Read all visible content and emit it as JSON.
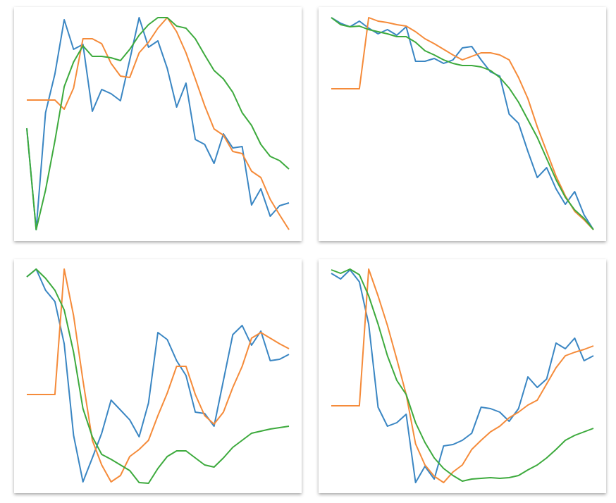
{
  "chart_data": [
    {
      "type": "line",
      "xlim": [
        0,
        28
      ],
      "ylim": [
        0,
        332
      ],
      "series": [
        {
          "color": "#3a86c3",
          "values": [
            160,
            16,
            182,
            237,
            314,
            272,
            279,
            184,
            215,
            209,
            199,
            257,
            317,
            275,
            284,
            245,
            190,
            224,
            144,
            137,
            110,
            152,
            132,
            134,
            51,
            74,
            35,
            50,
            54
          ]
        },
        {
          "color": "#f58b3a",
          "values": [
            200,
            200,
            200,
            200,
            187,
            217,
            287,
            287,
            280,
            252,
            234,
            232,
            267,
            282,
            302,
            317,
            297,
            267,
            230,
            192,
            159,
            150,
            127,
            124,
            99,
            90,
            59,
            37,
            16
          ]
        },
        {
          "color": "#3daa3d",
          "values": [
            160,
            16,
            72,
            142,
            219,
            254,
            277,
            262,
            262,
            260,
            256,
            272,
            292,
            307,
            317,
            317,
            305,
            302,
            287,
            264,
            242,
            230,
            211,
            182,
            164,
            137,
            120,
            114,
            102
          ]
        }
      ]
    },
    {
      "type": "line",
      "xlim": [
        0,
        28
      ],
      "ylim": [
        0,
        332
      ],
      "series": [
        {
          "color": "#3a86c3",
          "values": [
            317,
            309,
            304,
            312,
            302,
            294,
            300,
            292,
            304,
            255,
            255,
            259,
            252,
            257,
            274,
            276,
            257,
            240,
            234,
            180,
            167,
            127,
            90,
            104,
            74,
            52,
            70,
            37,
            16
          ]
        },
        {
          "color": "#f58b3a",
          "values": [
            216,
            216,
            216,
            216,
            317,
            312,
            310,
            307,
            305,
            297,
            287,
            280,
            272,
            264,
            257,
            262,
            267,
            267,
            264,
            257,
            232,
            202,
            162,
            127,
            92,
            64,
            42,
            30,
            16
          ]
        },
        {
          "color": "#3daa3d",
          "values": [
            317,
            307,
            304,
            305,
            300,
            297,
            294,
            290,
            290,
            282,
            270,
            264,
            257,
            252,
            249,
            249,
            247,
            242,
            232,
            217,
            197,
            172,
            147,
            117,
            87,
            62,
            44,
            32,
            16
          ]
        }
      ]
    },
    {
      "type": "line",
      "xlim": [
        0,
        28
      ],
      "ylim": [
        0,
        332
      ],
      "series": [
        {
          "color": "#3a86c3",
          "values": [
            307,
            318,
            288,
            272,
            212,
            82,
            16,
            50,
            85,
            132,
            118,
            104,
            80,
            128,
            228,
            218,
            188,
            167,
            115,
            113,
            95,
            160,
            225,
            238,
            210,
            230,
            188,
            190,
            197
          ]
        },
        {
          "color": "#f58b3a",
          "values": [
            140,
            140,
            140,
            140,
            318,
            252,
            160,
            75,
            40,
            16,
            25,
            52,
            62,
            75,
            110,
            142,
            180,
            180,
            140,
            110,
            98,
            115,
            150,
            180,
            220,
            228,
            220,
            212,
            205
          ]
        },
        {
          "color": "#3daa3d",
          "values": [
            307,
            318,
            305,
            288,
            260,
            200,
            120,
            80,
            55,
            48,
            40,
            32,
            15,
            14,
            35,
            52,
            60,
            60,
            50,
            40,
            37,
            50,
            65,
            75,
            85,
            88,
            91,
            93,
            95
          ]
        }
      ]
    },
    {
      "type": "line",
      "xlim": [
        0,
        28
      ],
      "ylim": [
        0,
        332
      ],
      "series": [
        {
          "color": "#3a86c3",
          "values": [
            312,
            304,
            317,
            300,
            240,
            122,
            95,
            100,
            112,
            15,
            38,
            20,
            67,
            69,
            75,
            85,
            122,
            120,
            115,
            102,
            120,
            165,
            150,
            162,
            213,
            205,
            220,
            188,
            195
          ]
        },
        {
          "color": "#f58b3a",
          "values": [
            124,
            124,
            124,
            124,
            318,
            280,
            238,
            190,
            140,
            70,
            40,
            24,
            15,
            30,
            40,
            62,
            75,
            87,
            95,
            107,
            115,
            125,
            132,
            155,
            178,
            195,
            200,
            204,
            209
          ]
        },
        {
          "color": "#3daa3d",
          "values": [
            317,
            312,
            318,
            310,
            280,
            240,
            195,
            160,
            140,
            100,
            72,
            50,
            35,
            25,
            17,
            20,
            21,
            22,
            21,
            22,
            25,
            33,
            40,
            50,
            62,
            75,
            82,
            87,
            92
          ]
        }
      ]
    }
  ]
}
